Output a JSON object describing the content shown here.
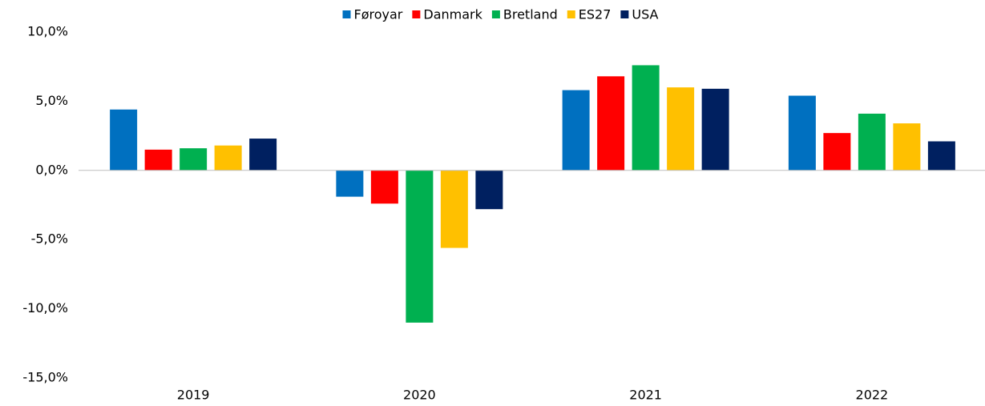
{
  "chart_data": {
    "type": "bar",
    "categories": [
      "2019",
      "2020",
      "2021",
      "2022"
    ],
    "series": [
      {
        "name": "Føroyar",
        "color": "#0070c0",
        "values": [
          4.4,
          -1.9,
          5.8,
          5.4
        ]
      },
      {
        "name": "Danmark",
        "color": "#ff0000",
        "values": [
          1.5,
          -2.4,
          6.8,
          2.7
        ]
      },
      {
        "name": "Bretland",
        "color": "#00b050",
        "values": [
          1.6,
          -11.0,
          7.6,
          4.1
        ]
      },
      {
        "name": "ES27",
        "color": "#ffc000",
        "values": [
          1.8,
          -5.6,
          6.0,
          3.4
        ]
      },
      {
        "name": "USA",
        "color": "#002060",
        "values": [
          2.3,
          -2.8,
          5.9,
          2.1
        ]
      }
    ],
    "ylim": [
      -15,
      10
    ],
    "yticks": [
      {
        "value": -15,
        "label": "-15,0%"
      },
      {
        "value": -10,
        "label": "-10,0%"
      },
      {
        "value": -5,
        "label": "-5,0%"
      },
      {
        "value": 0,
        "label": "0,0%"
      },
      {
        "value": 5,
        "label": "5,0%"
      },
      {
        "value": 10,
        "label": "10,0%"
      }
    ],
    "grid": false,
    "legend": "top"
  }
}
